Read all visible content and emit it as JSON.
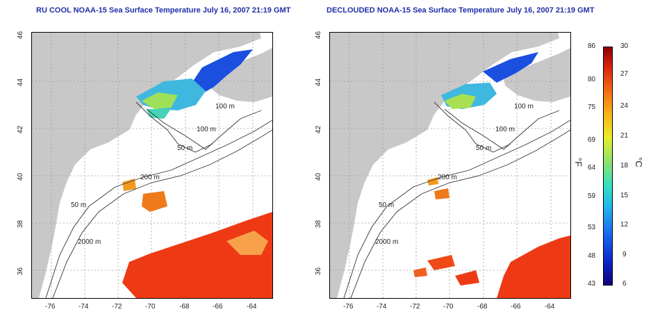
{
  "panels": [
    {
      "title": "RU COOL NOAA-15 Sea Surface Temperature July 16, 2007 21:19 GMT",
      "contour_labels": [
        "100 m",
        "100 m",
        "50 m",
        "200 m",
        "50 m",
        "2000 m"
      ]
    },
    {
      "title": "DECLOUDED NOAA-15 Sea Surface Temperature July 16, 2007 21:19 GMT",
      "contour_labels": [
        "100 m",
        "100 m",
        "50 m",
        "200 m",
        "50 m",
        "2000 m"
      ]
    }
  ],
  "axes": {
    "longitude_ticks": [
      "-76",
      "-74",
      "-72",
      "-70",
      "-68",
      "-66",
      "-64"
    ],
    "latitude_ticks": [
      "46",
      "44",
      "42",
      "40",
      "38",
      "36"
    ]
  },
  "colorbar": {
    "fahrenheit_ticks": [
      "86",
      "80",
      "75",
      "69",
      "64",
      "59",
      "53",
      "48",
      "43"
    ],
    "celsius_ticks": [
      "30",
      "27",
      "24",
      "21",
      "18",
      "15",
      "12",
      "9",
      "6"
    ],
    "f_unit": "°F",
    "c_unit": "°C"
  },
  "colors": {
    "land": "#c8c8c8",
    "title": "#1f2fa6"
  }
}
